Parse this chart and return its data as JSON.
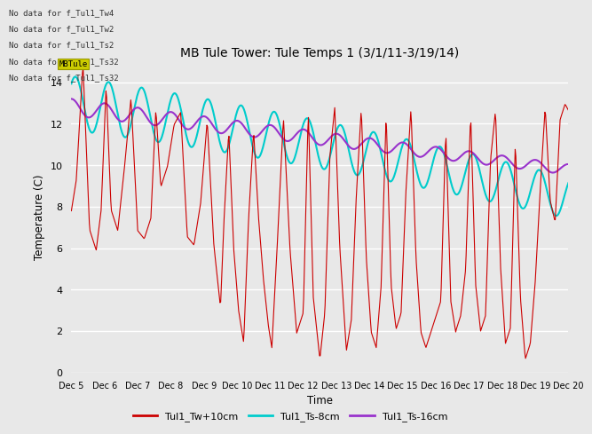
{
  "title": "MB Tule Tower: Tule Temps 1 (3/1/11-3/19/14)",
  "ylabel": "Temperature (C)",
  "xlabel": "Time",
  "ylim": [
    0,
    15
  ],
  "yticks": [
    0,
    2,
    4,
    6,
    8,
    10,
    12,
    14
  ],
  "xtick_labels": [
    "Dec 5",
    "Dec 6",
    "Dec 7",
    "Dec 8",
    "Dec 9",
    "Dec 10",
    "Dec 11",
    "Dec 12",
    "Dec 13",
    "Dec 14",
    "Dec 15",
    "Dec 16",
    "Dec 17",
    "Dec 18",
    "Dec 19",
    "Dec 20"
  ],
  "bg_color": "#e8e8e8",
  "grid_color": "white",
  "no_data_texts": [
    "No data for f_Tul1_Tw4",
    "No data for f_Tul1_Tw2",
    "No data for f_Tul1_Ts2",
    "No data for f_Tul1_Ts32",
    "No data for f_Tul1_Ts32"
  ],
  "legend_entries": [
    "Tul1_Tw+10cm",
    "Tul1_Ts-8cm",
    "Tul1_Ts-16cm"
  ],
  "tw_color": "#cc0000",
  "ts8_color": "#00cccc",
  "ts16_color": "#9933cc",
  "tooltip_text": "MBTule",
  "tooltip_bg": "#cccc00"
}
